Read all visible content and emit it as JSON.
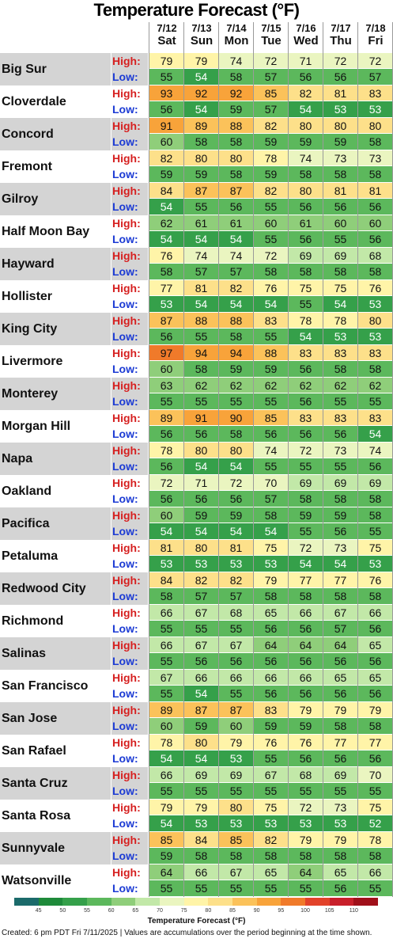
{
  "header": {
    "title": "Temperature Forecast (°F)"
  },
  "labels": {
    "high": "High:",
    "low": "Low:"
  },
  "colorbar": {
    "title": "Temperature Forecast (°F)",
    "ticks": [
      "45",
      "50",
      "55",
      "60",
      "65",
      "70",
      "75",
      "80",
      "85",
      "90",
      "95",
      "100",
      "105",
      "110"
    ],
    "colors": [
      "#1b6a6a",
      "#1e8a3a",
      "#35a04a",
      "#5cb85c",
      "#8fce7a",
      "#c2e8a8",
      "#eaf5c0",
      "#fff4a8",
      "#fde08a",
      "#fbc25a",
      "#f8a33a",
      "#f07a2a",
      "#e2422a",
      "#c81f2a",
      "#a0101a"
    ]
  },
  "footer": {
    "text": "Created: 6 pm PDT Fri 7/11/2025  |  Values are accumulations over the period beginning at the time shown."
  },
  "chart_data": {
    "type": "table",
    "title": "Temperature Forecast (°F)",
    "days": [
      {
        "date": "7/12",
        "weekday": "Sat"
      },
      {
        "date": "7/13",
        "weekday": "Sun"
      },
      {
        "date": "7/14",
        "weekday": "Mon"
      },
      {
        "date": "7/15",
        "weekday": "Tue"
      },
      {
        "date": "7/16",
        "weekday": "Wed"
      },
      {
        "date": "7/17",
        "weekday": "Thu"
      },
      {
        "date": "7/18",
        "weekday": "Fri"
      }
    ],
    "rows": [
      {
        "city": "Big Sur",
        "high": [
          79,
          79,
          74,
          72,
          71,
          72,
          72
        ],
        "low": [
          55,
          54,
          58,
          57,
          56,
          56,
          57
        ]
      },
      {
        "city": "Cloverdale",
        "high": [
          93,
          92,
          92,
          85,
          82,
          81,
          83
        ],
        "low": [
          56,
          54,
          59,
          57,
          54,
          53,
          53
        ]
      },
      {
        "city": "Concord",
        "high": [
          91,
          89,
          88,
          82,
          80,
          80,
          80
        ],
        "low": [
          60,
          58,
          58,
          59,
          59,
          59,
          58
        ]
      },
      {
        "city": "Fremont",
        "high": [
          82,
          80,
          80,
          78,
          74,
          73,
          73
        ],
        "low": [
          59,
          59,
          58,
          59,
          58,
          58,
          58
        ]
      },
      {
        "city": "Gilroy",
        "high": [
          84,
          87,
          87,
          82,
          80,
          81,
          81
        ],
        "low": [
          54,
          55,
          56,
          55,
          56,
          56,
          56
        ]
      },
      {
        "city": "Half Moon Bay",
        "high": [
          62,
          61,
          61,
          60,
          61,
          60,
          60
        ],
        "low": [
          54,
          54,
          54,
          55,
          56,
          55,
          56
        ]
      },
      {
        "city": "Hayward",
        "high": [
          76,
          74,
          74,
          72,
          69,
          69,
          68
        ],
        "low": [
          58,
          57,
          57,
          58,
          58,
          58,
          58
        ]
      },
      {
        "city": "Hollister",
        "high": [
          77,
          81,
          82,
          76,
          75,
          75,
          76
        ],
        "low": [
          53,
          54,
          54,
          54,
          55,
          54,
          53
        ]
      },
      {
        "city": "King City",
        "high": [
          87,
          88,
          88,
          83,
          78,
          78,
          80
        ],
        "low": [
          56,
          55,
          58,
          55,
          54,
          53,
          53
        ]
      },
      {
        "city": "Livermore",
        "high": [
          97,
          94,
          94,
          88,
          83,
          83,
          83
        ],
        "low": [
          60,
          58,
          59,
          59,
          56,
          58,
          58
        ]
      },
      {
        "city": "Monterey",
        "high": [
          63,
          62,
          62,
          62,
          62,
          62,
          62
        ],
        "low": [
          55,
          55,
          55,
          55,
          56,
          55,
          55
        ]
      },
      {
        "city": "Morgan Hill",
        "high": [
          89,
          91,
          90,
          85,
          83,
          83,
          83
        ],
        "low": [
          56,
          56,
          58,
          56,
          56,
          56,
          54
        ]
      },
      {
        "city": "Napa",
        "high": [
          78,
          80,
          80,
          74,
          72,
          73,
          74
        ],
        "low": [
          56,
          54,
          54,
          55,
          55,
          55,
          56
        ]
      },
      {
        "city": "Oakland",
        "high": [
          72,
          71,
          72,
          70,
          69,
          69,
          69
        ],
        "low": [
          56,
          56,
          56,
          57,
          58,
          58,
          58
        ]
      },
      {
        "city": "Pacifica",
        "high": [
          60,
          59,
          59,
          58,
          59,
          59,
          58
        ],
        "low": [
          54,
          54,
          54,
          54,
          55,
          56,
          55
        ]
      },
      {
        "city": "Petaluma",
        "high": [
          81,
          80,
          81,
          75,
          72,
          73,
          75
        ],
        "low": [
          53,
          53,
          53,
          53,
          54,
          54,
          53
        ]
      },
      {
        "city": "Redwood City",
        "high": [
          84,
          82,
          82,
          79,
          77,
          77,
          76
        ],
        "low": [
          58,
          57,
          57,
          58,
          58,
          58,
          58
        ]
      },
      {
        "city": "Richmond",
        "high": [
          66,
          67,
          68,
          65,
          66,
          67,
          66
        ],
        "low": [
          55,
          55,
          55,
          56,
          56,
          57,
          56
        ]
      },
      {
        "city": "Salinas",
        "high": [
          66,
          67,
          67,
          64,
          64,
          64,
          65
        ],
        "low": [
          55,
          56,
          56,
          56,
          56,
          56,
          56
        ]
      },
      {
        "city": "San Francisco",
        "high": [
          67,
          66,
          66,
          66,
          66,
          65,
          65
        ],
        "low": [
          55,
          54,
          55,
          56,
          56,
          56,
          56
        ]
      },
      {
        "city": "San Jose",
        "high": [
          89,
          87,
          87,
          83,
          79,
          79,
          79
        ],
        "low": [
          60,
          59,
          60,
          59,
          59,
          58,
          58
        ]
      },
      {
        "city": "San Rafael",
        "high": [
          78,
          80,
          79,
          76,
          76,
          77,
          77
        ],
        "low": [
          54,
          54,
          53,
          55,
          56,
          56,
          56
        ]
      },
      {
        "city": "Santa Cruz",
        "high": [
          66,
          69,
          69,
          67,
          68,
          69,
          70
        ],
        "low": [
          55,
          55,
          55,
          55,
          55,
          55,
          55
        ]
      },
      {
        "city": "Santa Rosa",
        "high": [
          79,
          79,
          80,
          75,
          72,
          73,
          75
        ],
        "low": [
          54,
          53,
          53,
          53,
          53,
          53,
          52
        ]
      },
      {
        "city": "Sunnyvale",
        "high": [
          85,
          84,
          85,
          82,
          79,
          79,
          78
        ],
        "low": [
          59,
          58,
          58,
          58,
          58,
          58,
          58
        ]
      },
      {
        "city": "Watsonville",
        "high": [
          64,
          66,
          67,
          65,
          64,
          65,
          66
        ],
        "low": [
          55,
          55,
          55,
          55,
          55,
          56,
          55
        ]
      }
    ]
  }
}
